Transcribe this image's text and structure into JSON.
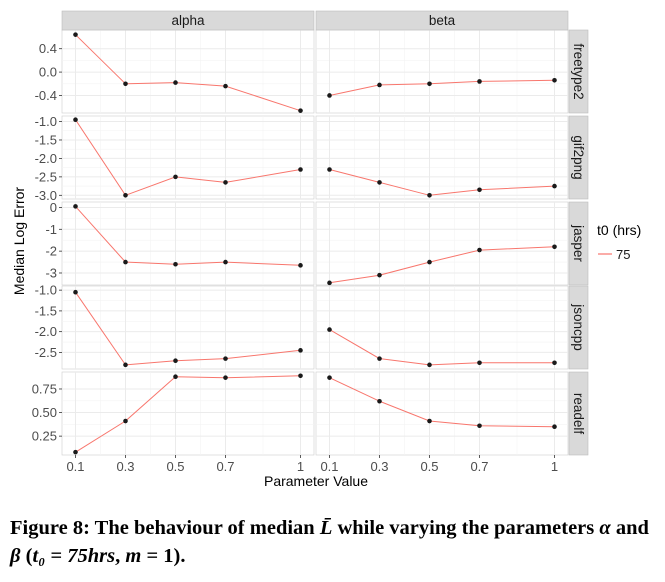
{
  "chart_data": {
    "type": "line",
    "xlabel": "Parameter Value",
    "ylabel": "Median Log Error",
    "x": [
      0.1,
      0.3,
      0.5,
      0.7,
      1
    ],
    "x_tick_labels": [
      "0.1",
      "0.3",
      "0.5",
      "0.7",
      "1"
    ],
    "facet_columns": [
      "alpha",
      "beta"
    ],
    "facet_rows": [
      "freetype2",
      "gif2png",
      "jasper",
      "jsoncpp",
      "readelf"
    ],
    "legend": {
      "title": "t0 (hrs)",
      "entries": [
        "75"
      ],
      "position": "right"
    },
    "colors": {
      "line": "#f8766d",
      "point": "#1a1a1a",
      "panel_bg": "#ffffff",
      "grid": "#ebebeb",
      "strip_bg": "#d9d9d9"
    },
    "grid": true,
    "panels": [
      {
        "row": "freetype2",
        "ylim": [
          -0.7,
          0.72
        ],
        "y_ticks": [
          0.4,
          0.0,
          -0.4
        ],
        "y_tick_labels": [
          "0.4",
          "0.0",
          "-0.4"
        ],
        "series": [
          {
            "column": "alpha",
            "values": [
              0.64,
              -0.2,
              -0.18,
              -0.24,
              -0.66
            ]
          },
          {
            "column": "beta",
            "values": [
              -0.4,
              -0.22,
              -0.2,
              -0.16,
              -0.14
            ]
          }
        ]
      },
      {
        "row": "gif2png",
        "ylim": [
          -3.1,
          -0.85
        ],
        "y_ticks": [
          -1.0,
          -1.5,
          -2.0,
          -2.5,
          -3.0
        ],
        "y_tick_labels": [
          "-1.0",
          "-1.5",
          "-2.0",
          "-2.5",
          "-3.0"
        ],
        "series": [
          {
            "column": "alpha",
            "values": [
              -0.95,
              -3.0,
              -2.5,
              -2.65,
              -2.3
            ]
          },
          {
            "column": "beta",
            "values": [
              -2.3,
              -2.65,
              -3.0,
              -2.85,
              -2.75
            ]
          }
        ]
      },
      {
        "row": "jasper",
        "ylim": [
          -3.55,
          0.25
        ],
        "y_ticks": [
          0,
          -1,
          -2,
          -3
        ],
        "y_tick_labels": [
          "0",
          "-1",
          "-2",
          "-3"
        ],
        "series": [
          {
            "column": "alpha",
            "values": [
              0.05,
              -2.5,
              -2.6,
              -2.5,
              -2.65
            ]
          },
          {
            "column": "beta",
            "values": [
              -3.45,
              -3.1,
              -2.5,
              -1.95,
              -1.8
            ]
          }
        ]
      },
      {
        "row": "jsoncpp",
        "ylim": [
          -2.9,
          -0.9
        ],
        "y_ticks": [
          -1.0,
          -1.5,
          -2.0,
          -2.5
        ],
        "y_tick_labels": [
          "-1.0",
          "-1.5",
          "-2.0",
          "-2.5"
        ],
        "series": [
          {
            "column": "alpha",
            "values": [
              -1.05,
              -2.8,
              -2.7,
              -2.65,
              -2.45
            ]
          },
          {
            "column": "beta",
            "values": [
              -1.95,
              -2.65,
              -2.8,
              -2.75,
              -2.75
            ]
          }
        ]
      },
      {
        "row": "readelf",
        "ylim": [
          0.05,
          0.93
        ],
        "y_ticks": [
          0.75,
          0.5,
          0.25
        ],
        "y_tick_labels": [
          "0.75",
          "0.50",
          "0.25"
        ],
        "series": [
          {
            "column": "alpha",
            "values": [
              0.08,
              0.41,
              0.88,
              0.87,
              0.89
            ]
          },
          {
            "column": "beta",
            "values": [
              0.87,
              0.62,
              0.41,
              0.36,
              0.35
            ]
          }
        ]
      }
    ]
  },
  "caption": {
    "label": "Figure 8:",
    "text_before_L": " The behaviour of median ",
    "L_symbol": "L̄",
    "text_mid1": " while varying the parameters ",
    "alpha_symbol": "α",
    "text_mid2": " and ",
    "beta_symbol": "β",
    "text_paren_open": " (",
    "t0_symbol": "t₀",
    "text_eq1": " = ",
    "t0_value": "75hrs",
    "text_comma": ", ",
    "m_symbol": "m",
    "text_eq2": " = ",
    "m_value": "1",
    "text_paren_close": ")."
  }
}
